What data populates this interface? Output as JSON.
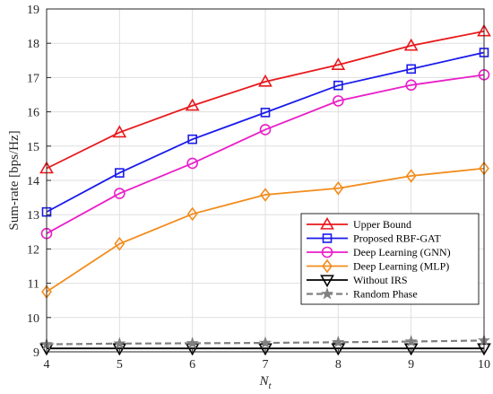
{
  "chart_data": {
    "type": "line",
    "xlabel": "N",
    "xlabel_sub": "t",
    "ylabel": "Sum-rate [bps/Hz]",
    "xlim": [
      4,
      10
    ],
    "ylim": [
      9,
      19
    ],
    "grid": true,
    "legend_position": "bottom-right",
    "x": [
      4,
      5,
      6,
      7,
      8,
      9,
      10
    ],
    "x_ticks": [
      "4",
      "5",
      "6",
      "7",
      "8",
      "9",
      "10"
    ],
    "y_ticks": [
      "9",
      "10",
      "11",
      "12",
      "13",
      "14",
      "15",
      "16",
      "17",
      "18",
      "19"
    ],
    "series": [
      {
        "name": "Upper Bound",
        "color": "#e8191c",
        "marker": "triangle-up",
        "dash": "solid",
        "values": [
          14.35,
          15.4,
          16.18,
          16.88,
          17.37,
          17.93,
          18.35
        ]
      },
      {
        "name": "Proposed RBF-GAT",
        "color": "#1a1aeb",
        "marker": "square",
        "dash": "solid",
        "values": [
          13.08,
          14.22,
          15.2,
          15.98,
          16.77,
          17.25,
          17.73
        ]
      },
      {
        "name": "Deep Learning (GNN)",
        "color": "#e91ec8",
        "marker": "circle",
        "dash": "solid",
        "values": [
          12.45,
          13.62,
          14.5,
          15.48,
          16.32,
          16.78,
          17.08
        ]
      },
      {
        "name": "Deep Learning (MLP)",
        "color": "#f28c1c",
        "marker": "diamond",
        "dash": "solid",
        "values": [
          10.75,
          12.15,
          13.02,
          13.58,
          13.77,
          14.13,
          14.35
        ]
      },
      {
        "name": "Without IRS",
        "color": "#000000",
        "marker": "triangle-down",
        "dash": "solid",
        "values": [
          9.1,
          9.1,
          9.1,
          9.1,
          9.1,
          9.1,
          9.1
        ]
      },
      {
        "name": "Random Phase",
        "color": "#808080",
        "marker": "star",
        "dash": "dashed",
        "values": [
          9.22,
          9.24,
          9.25,
          9.26,
          9.28,
          9.3,
          9.33
        ]
      }
    ]
  }
}
